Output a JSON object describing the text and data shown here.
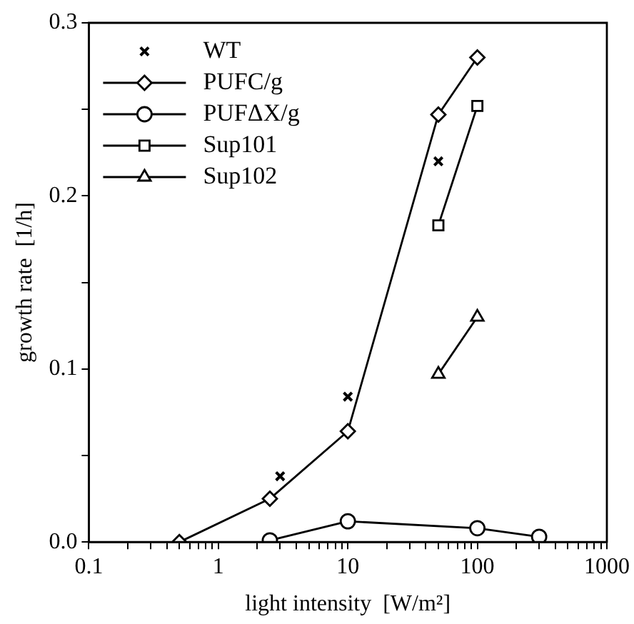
{
  "chart_data": {
    "type": "line",
    "xlabel": "light intensity  [W/m²]",
    "ylabel": "growth rate  [1/h]",
    "log": "x",
    "legend": "top left",
    "grid": false,
    "xlim": [
      0.1,
      1000
    ],
    "ylim": [
      0,
      0.3
    ],
    "xticks": [
      {
        "value": 0.1,
        "label": "0.1"
      },
      {
        "value": 0.2,
        "label": null
      },
      {
        "value": 0.3,
        "label": null
      },
      {
        "value": 0.4,
        "label": null
      },
      {
        "value": 0.5,
        "label": null
      },
      {
        "value": 0.6,
        "label": null
      },
      {
        "value": 0.7,
        "label": null
      },
      {
        "value": 0.8,
        "label": null
      },
      {
        "value": 0.9,
        "label": null
      },
      1,
      {
        "value": 2,
        "label": null
      },
      {
        "value": 3,
        "label": null
      },
      {
        "value": 4,
        "label": null
      },
      {
        "value": 5,
        "label": null
      },
      {
        "value": 6,
        "label": null
      },
      {
        "value": 7,
        "label": null
      },
      {
        "value": 8,
        "label": null
      },
      {
        "value": 9,
        "label": null
      },
      10,
      {
        "value": 20,
        "label": null
      },
      {
        "value": 30,
        "label": null
      },
      {
        "value": 40,
        "label": null
      },
      {
        "value": 50,
        "label": null
      },
      {
        "value": 60,
        "label": null
      },
      {
        "value": 70,
        "label": null
      },
      {
        "value": 80,
        "label": null
      },
      {
        "value": 90,
        "label": null
      },
      100,
      {
        "value": 200,
        "label": null
      },
      {
        "value": 300,
        "label": null
      },
      {
        "value": 400,
        "label": null
      },
      {
        "value": 500,
        "label": null
      },
      {
        "value": 600,
        "label": null
      },
      {
        "value": 700,
        "label": null
      },
      {
        "value": 800,
        "label": null
      },
      {
        "value": 900,
        "label": null
      },
      1000
    ],
    "yticks": [
      {
        "value": 0,
        "label": "0.0"
      },
      {
        "value": 0.05,
        "label": null
      },
      0.1,
      {
        "value": 0.15,
        "label": null
      },
      0.2,
      {
        "value": 0.25,
        "label": null
      },
      0.3
    ],
    "series": [
      {
        "name": "WT",
        "type": "scatter",
        "marker": "cross",
        "color": "#000000",
        "x": [
          3,
          10,
          50
        ],
        "values": [
          0.038,
          0.084,
          0.22
        ]
      },
      {
        "name": "PUFC/g",
        "marker": "diamond",
        "line_style": "solid",
        "color": "#000000",
        "x": [
          0.5,
          2.5,
          10,
          50,
          100
        ],
        "values": [
          0,
          0.025,
          0.064,
          0.247,
          0.28
        ]
      },
      {
        "name": "PUFΔX/g",
        "marker": "circle",
        "line_style": "solid",
        "color": "#000000",
        "x": [
          2.5,
          10,
          100,
          300
        ],
        "values": [
          0.001,
          0.012,
          0.008,
          0.003
        ]
      },
      {
        "name": "Sup101",
        "marker": "square",
        "line_style": "solid",
        "color": "#000000",
        "x": [
          50,
          100
        ],
        "values": [
          0.183,
          0.252
        ]
      },
      {
        "name": "Sup102",
        "marker": "triangle",
        "line_style": "solid",
        "color": "#000000",
        "x": [
          50,
          100
        ],
        "values": [
          0.097,
          0.13
        ]
      }
    ]
  }
}
